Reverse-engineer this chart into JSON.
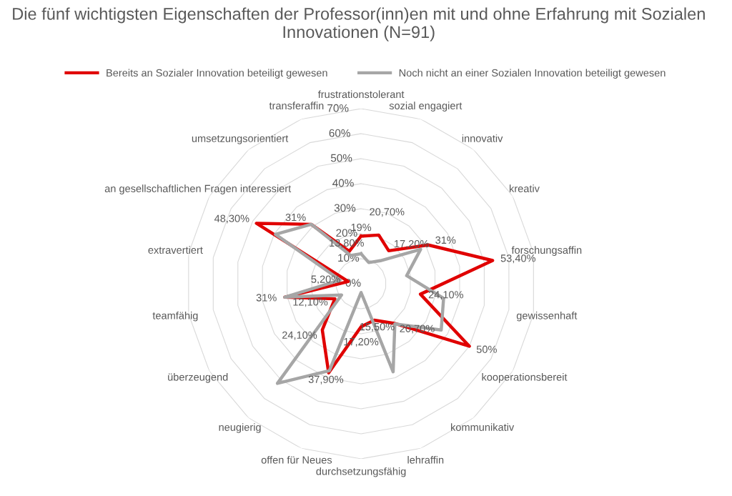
{
  "chart_data": {
    "type": "radar",
    "title": "Die fünf wichtigsten Eigenschaften der Professor(inn)en mit und ohne Erfahrung mit Sozialen Innovationen (N=91)",
    "categories": [
      "frustrationstolerant",
      "sozial engagiert",
      "innovativ",
      "kreativ",
      "forschungsaffin",
      "gewissenhaft",
      "kooperationsbereit",
      "kommunikativ",
      "lehraffin",
      "durchsetzungsfähig",
      "offen für Neues",
      "neugierig",
      "überzeugend",
      "teamfähig",
      "extravertiert",
      "an gesellschaftlichen Fragen interessiert",
      "umsetzungsorientiert",
      "transferaffin"
    ],
    "series": [
      {
        "name": "Bereits an Sozialer Innovation beteiligt gewesen",
        "color": "#e00000",
        "values": [
          19,
          20.7,
          17.2,
          31,
          53.4,
          24.1,
          50,
          20.7,
          15.5,
          17.2,
          37.9,
          24.1,
          12.1,
          31,
          5.2,
          48.3,
          31,
          13.8
        ],
        "value_labels": [
          "19%",
          "20,70%",
          "17,20%",
          "31%",
          "53,40%",
          "24,10%",
          "50%",
          "20,70%",
          "15,50%",
          "17,20%",
          "37,90%",
          "24,10%",
          "12,10%",
          "31%",
          "5,20%",
          "48,30%",
          "31%",
          "13,80%"
        ]
      },
      {
        "name": "Noch nicht an einer Sozialen Innovation beteiligt gewesen",
        "color": "#a6a6a6",
        "values": [
          12,
          9,
          12,
          27.5,
          18.5,
          33.5,
          37,
          21,
          37.5,
          3.5,
          37,
          52,
          9,
          31,
          8.5,
          39.5,
          31,
          12
        ]
      }
    ],
    "ylim": [
      0,
      70
    ],
    "yticks": [
      {
        "value": 0,
        "label": "0%"
      },
      {
        "value": 10,
        "label": "10%"
      },
      {
        "value": 20,
        "label": "20%"
      },
      {
        "value": 30,
        "label": "30%"
      },
      {
        "value": 40,
        "label": "40%"
      },
      {
        "value": 50,
        "label": "50%"
      },
      {
        "value": 60,
        "label": "60%"
      },
      {
        "value": 70,
        "label": "70%"
      }
    ],
    "grid": true,
    "legend": "top",
    "marker": "none",
    "line_style": "solid"
  }
}
